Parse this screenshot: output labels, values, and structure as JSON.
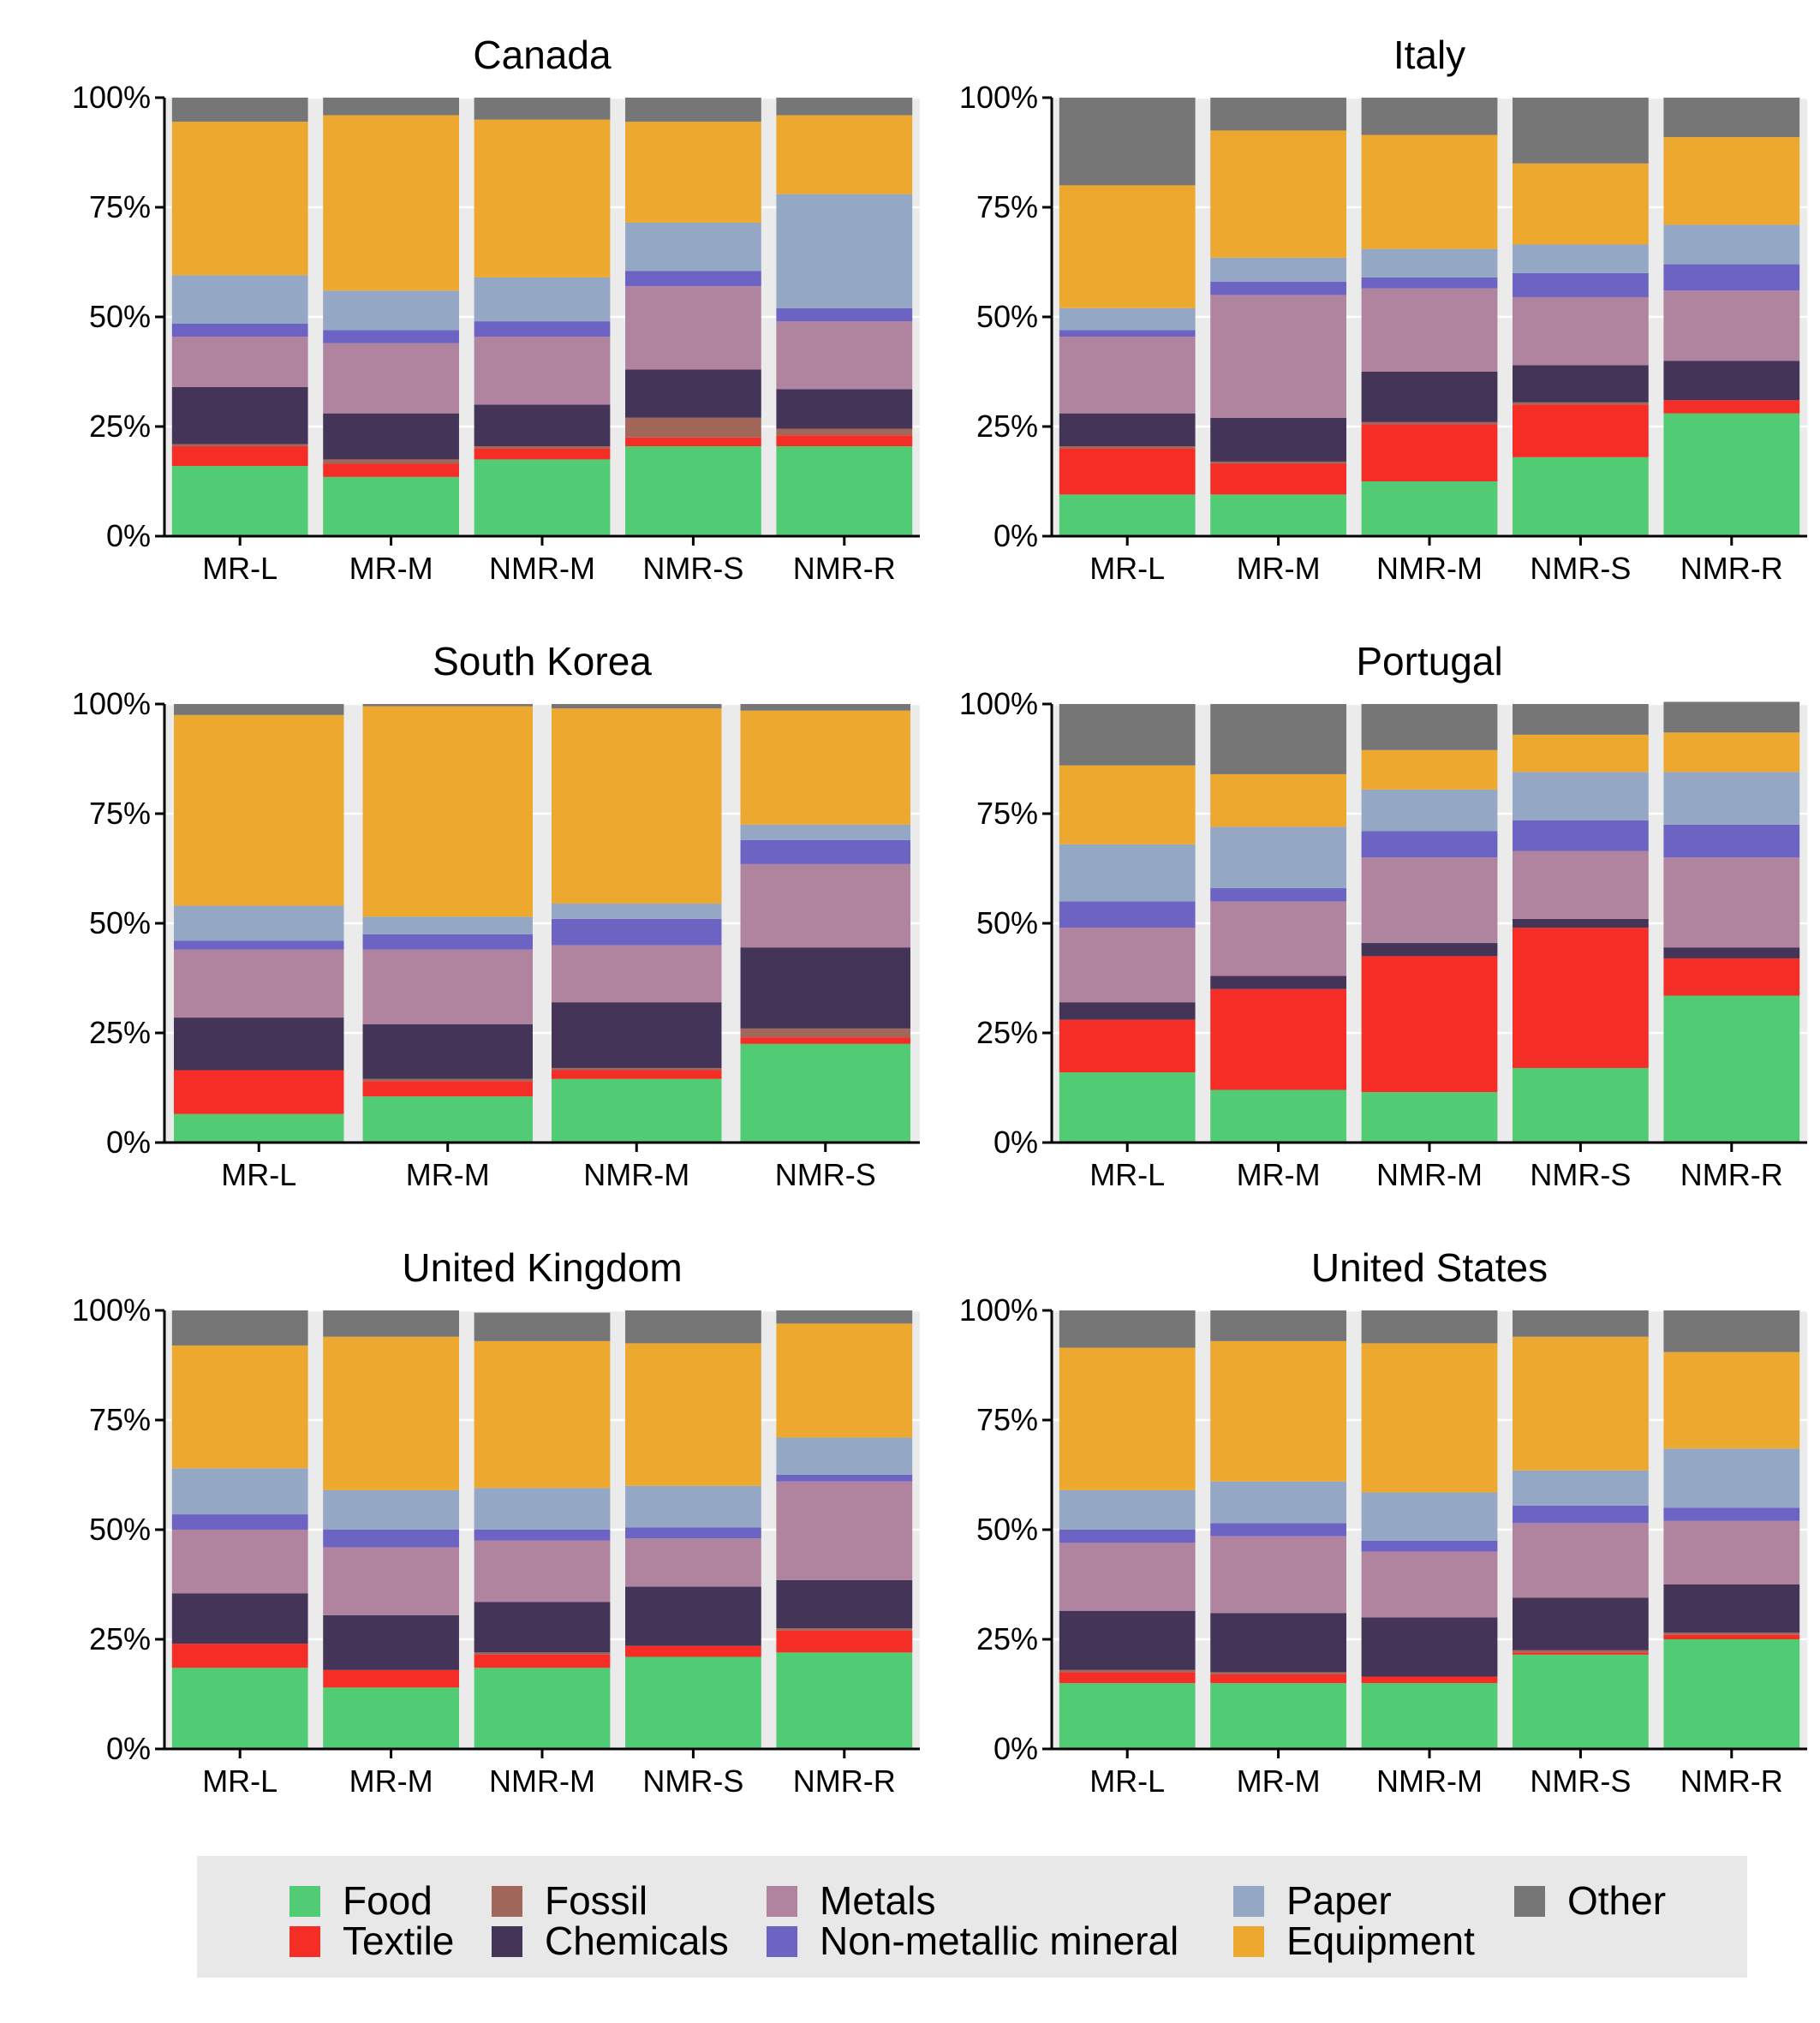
{
  "chart_data": [
    {
      "type": "bar",
      "title": "Canada",
      "categories": [
        "MR-L",
        "MR-M",
        "NMR-M",
        "NMR-S",
        "NMR-R"
      ],
      "ylim": [
        0,
        100
      ],
      "y_ticks": [
        "0%",
        "25%",
        "50%",
        "75%",
        "100%"
      ],
      "series": [
        {
          "name": "Food",
          "values": [
            16,
            13.5,
            17.5,
            20.5,
            20.5
          ]
        },
        {
          "name": "Textile",
          "values": [
            4.5,
            3,
            2.5,
            2,
            2.5
          ]
        },
        {
          "name": "Fossil",
          "values": [
            0.5,
            1,
            0.5,
            4.5,
            1.5
          ]
        },
        {
          "name": "Chemicals",
          "values": [
            13,
            10.5,
            9.5,
            11,
            9
          ]
        },
        {
          "name": "Metals",
          "values": [
            11.5,
            16,
            15.5,
            19,
            15.5
          ]
        },
        {
          "name": "Non-metallic mineral",
          "values": [
            3,
            3,
            3.5,
            3.5,
            3
          ]
        },
        {
          "name": "Paper",
          "values": [
            11,
            9,
            10,
            11,
            26
          ]
        },
        {
          "name": "Equipment",
          "values": [
            35,
            40,
            36,
            23,
            18
          ]
        },
        {
          "name": "Other",
          "values": [
            5.5,
            4,
            5,
            5.5,
            4
          ]
        }
      ]
    },
    {
      "type": "bar",
      "title": "Italy",
      "categories": [
        "MR-L",
        "MR-M",
        "NMR-M",
        "NMR-S",
        "NMR-R"
      ],
      "ylim": [
        0,
        100
      ],
      "y_ticks": [
        "0%",
        "25%",
        "50%",
        "75%",
        "100%"
      ],
      "series": [
        {
          "name": "Food",
          "values": [
            9.5,
            9.5,
            12.5,
            18,
            28
          ]
        },
        {
          "name": "Textile",
          "values": [
            10.5,
            7,
            13,
            12,
            3
          ]
        },
        {
          "name": "Fossil",
          "values": [
            0.5,
            0.5,
            0.5,
            0.5,
            0
          ]
        },
        {
          "name": "Chemicals",
          "values": [
            7.5,
            10,
            11.5,
            8.5,
            9
          ]
        },
        {
          "name": "Metals",
          "values": [
            17.5,
            28,
            19,
            15.5,
            16
          ]
        },
        {
          "name": "Non-metallic mineral",
          "values": [
            1.5,
            3,
            2.5,
            5.5,
            6
          ]
        },
        {
          "name": "Paper",
          "values": [
            5,
            5.5,
            6.5,
            6.5,
            9
          ]
        },
        {
          "name": "Equipment",
          "values": [
            28,
            29,
            26,
            18.5,
            20
          ]
        },
        {
          "name": "Other",
          "values": [
            20,
            7.5,
            8.5,
            15,
            9
          ]
        }
      ]
    },
    {
      "type": "bar",
      "title": "South Korea",
      "categories": [
        "MR-L",
        "MR-M",
        "NMR-M",
        "NMR-S"
      ],
      "ylim": [
        0,
        100
      ],
      "y_ticks": [
        "0%",
        "25%",
        "50%",
        "75%",
        "100%"
      ],
      "series": [
        {
          "name": "Food",
          "values": [
            6.5,
            10.5,
            14.5,
            22.5
          ]
        },
        {
          "name": "Textile",
          "values": [
            10,
            3.5,
            2,
            1.5
          ]
        },
        {
          "name": "Fossil",
          "values": [
            0,
            0.5,
            0.5,
            2
          ]
        },
        {
          "name": "Chemicals",
          "values": [
            12,
            12.5,
            15,
            18.5
          ]
        },
        {
          "name": "Metals",
          "values": [
            15.5,
            17,
            13,
            19
          ]
        },
        {
          "name": "Non-metallic mineral",
          "values": [
            2,
            3.5,
            6,
            5.5
          ]
        },
        {
          "name": "Paper",
          "values": [
            8,
            4,
            3.5,
            3.5
          ]
        },
        {
          "name": "Equipment",
          "values": [
            43.5,
            48,
            44.5,
            26
          ]
        },
        {
          "name": "Other",
          "values": [
            2.5,
            0.5,
            1,
            1.5
          ]
        }
      ]
    },
    {
      "type": "bar",
      "title": "Portugal",
      "categories": [
        "MR-L",
        "MR-M",
        "NMR-M",
        "NMR-S",
        "NMR-R"
      ],
      "ylim": [
        0,
        100
      ],
      "y_ticks": [
        "0%",
        "25%",
        "50%",
        "75%",
        "100%"
      ],
      "series": [
        {
          "name": "Food",
          "values": [
            16,
            12,
            11.5,
            17,
            33.5
          ]
        },
        {
          "name": "Textile",
          "values": [
            12,
            23,
            31,
            32,
            8.5
          ]
        },
        {
          "name": "Fossil",
          "values": [
            0,
            0,
            0,
            0,
            0
          ]
        },
        {
          "name": "Chemicals",
          "values": [
            4,
            3,
            3,
            2,
            2.5
          ]
        },
        {
          "name": "Metals",
          "values": [
            17,
            17,
            19.5,
            15.5,
            20.5
          ]
        },
        {
          "name": "Non-metallic mineral",
          "values": [
            6,
            3,
            6,
            7,
            7.5
          ]
        },
        {
          "name": "Paper",
          "values": [
            13,
            14,
            9.5,
            11,
            12
          ]
        },
        {
          "name": "Equipment",
          "values": [
            18,
            12,
            9,
            8.5,
            9
          ]
        },
        {
          "name": "Other",
          "values": [
            14,
            16,
            10.5,
            7,
            7
          ]
        }
      ]
    },
    {
      "type": "bar",
      "title": "United Kingdom",
      "categories": [
        "MR-L",
        "MR-M",
        "NMR-M",
        "NMR-S",
        "NMR-R"
      ],
      "ylim": [
        0,
        100
      ],
      "y_ticks": [
        "0%",
        "25%",
        "50%",
        "75%",
        "100%"
      ],
      "series": [
        {
          "name": "Food",
          "values": [
            18.5,
            14,
            18.5,
            21,
            22
          ]
        },
        {
          "name": "Textile",
          "values": [
            5.5,
            4,
            3,
            2.5,
            5
          ]
        },
        {
          "name": "Fossil",
          "values": [
            0,
            0,
            0.5,
            0,
            0.5
          ]
        },
        {
          "name": "Chemicals",
          "values": [
            11.5,
            12.5,
            11.5,
            13.5,
            11
          ]
        },
        {
          "name": "Metals",
          "values": [
            14.5,
            15.5,
            14,
            11,
            22.5
          ]
        },
        {
          "name": "Non-metallic mineral",
          "values": [
            3.5,
            4,
            2.5,
            2.5,
            1.5
          ]
        },
        {
          "name": "Paper",
          "values": [
            10.5,
            9,
            9.5,
            9.5,
            8.5
          ]
        },
        {
          "name": "Equipment",
          "values": [
            28,
            35,
            33.5,
            32.5,
            26
          ]
        },
        {
          "name": "Other",
          "values": [
            8,
            6,
            6.5,
            7.5,
            3
          ]
        }
      ]
    },
    {
      "type": "bar",
      "title": "United States",
      "categories": [
        "MR-L",
        "MR-M",
        "NMR-M",
        "NMR-S",
        "NMR-R"
      ],
      "ylim": [
        0,
        100
      ],
      "y_ticks": [
        "0%",
        "25%",
        "50%",
        "75%",
        "100%"
      ],
      "series": [
        {
          "name": "Food",
          "values": [
            15,
            15,
            15,
            21.5,
            25
          ]
        },
        {
          "name": "Textile",
          "values": [
            2.5,
            2,
            1.5,
            0.5,
            1
          ]
        },
        {
          "name": "Fossil",
          "values": [
            0.5,
            0.5,
            0,
            0.5,
            0.5
          ]
        },
        {
          "name": "Chemicals",
          "values": [
            13.5,
            13.5,
            13.5,
            12,
            11
          ]
        },
        {
          "name": "Metals",
          "values": [
            15.5,
            17.5,
            15,
            17,
            14.5
          ]
        },
        {
          "name": "Non-metallic mineral",
          "values": [
            3,
            3,
            2.5,
            4,
            3
          ]
        },
        {
          "name": "Paper",
          "values": [
            9,
            9.5,
            11,
            8,
            13.5
          ]
        },
        {
          "name": "Equipment",
          "values": [
            32.5,
            32,
            34,
            30.5,
            22
          ]
        },
        {
          "name": "Other",
          "values": [
            8.5,
            7,
            7.5,
            6,
            9.5
          ]
        }
      ]
    }
  ],
  "colors": {
    "Food": "#52cc74",
    "Textile": "#f42d27",
    "Fossil": "#a0675a",
    "Chemicals": "#443558",
    "Metals": "#b0839e",
    "Non-metallic mineral": "#6d63c2",
    "Paper": "#94a8c6",
    "Equipment": "#eca82f",
    "Other": "#767676",
    "panel_background": "#ebebeb",
    "legend_background": "#e8e8e8"
  },
  "legend": {
    "items": [
      "Food",
      "Textile",
      "Fossil",
      "Chemicals",
      "Metals",
      "Non-metallic mineral",
      "Paper",
      "Equipment",
      "Other"
    ]
  }
}
